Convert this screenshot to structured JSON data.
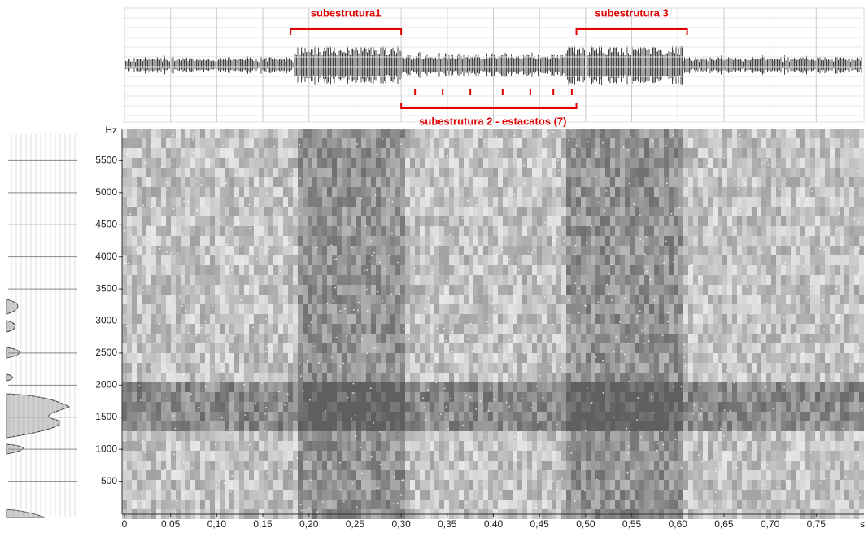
{
  "chart_data": {
    "type": "spectrogram",
    "x_unit": "s",
    "y_unit": "Hz",
    "xlim": [
      0,
      0.8
    ],
    "xticks": [
      0,
      {
        "value": 0.05,
        "label": "0,05"
      },
      {
        "value": 0.1,
        "label": "0,10"
      },
      {
        "value": 0.15,
        "label": "0,15"
      },
      {
        "value": 0.2,
        "label": "0,20"
      },
      {
        "value": 0.25,
        "label": "0,25"
      },
      {
        "value": 0.3,
        "label": "0,30"
      },
      {
        "value": 0.35,
        "label": "0,35"
      },
      {
        "value": 0.4,
        "label": "0,40"
      },
      {
        "value": 0.45,
        "label": "0,45"
      },
      {
        "value": 0.5,
        "label": "0,50"
      },
      {
        "value": 0.55,
        "label": "0,55"
      },
      {
        "value": 0.6,
        "label": "0,60"
      },
      {
        "value": 0.65,
        "label": "0,65"
      },
      {
        "value": 0.7,
        "label": "0,70"
      },
      {
        "value": 0.75,
        "label": "0,75"
      }
    ],
    "ylim": [
      0,
      6000
    ],
    "yticks": [
      500,
      1000,
      1500,
      2000,
      2500,
      3000,
      3500,
      4000,
      4500,
      5000,
      5500
    ],
    "annotation_color": "#e00000",
    "annotations": [
      {
        "text": "subestrutura1",
        "span": [
          0.18,
          0.3
        ],
        "position": "top"
      },
      {
        "text": "subestrutura 3",
        "span": [
          0.49,
          0.61
        ],
        "position": "top"
      },
      {
        "text": "subestrutura 2 - estacatos (7)",
        "span": [
          0.3,
          0.49
        ],
        "position": "bottom",
        "marks": [
          0.315,
          0.345,
          0.375,
          0.41,
          0.44,
          0.465,
          0.485
        ]
      }
    ]
  }
}
